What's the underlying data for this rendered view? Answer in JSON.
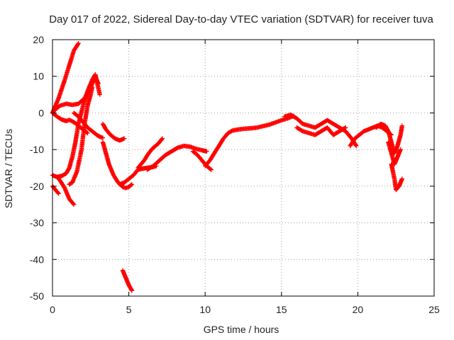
{
  "chart_data": {
    "type": "scatter",
    "title": "Day 017 of 2022, Sidereal Day-to-day VTEC variation (SDTVAR) for receiver tuva",
    "xlabel": "GPS time / hours",
    "ylabel": "SDTVAR / TECUs",
    "xlim": [
      0,
      25
    ],
    "ylim": [
      -50,
      20
    ],
    "xticks": [
      0,
      5,
      10,
      15,
      20,
      25
    ],
    "yticks": [
      20,
      10,
      0,
      -10,
      -20,
      -30,
      -40,
      -50
    ],
    "grid": true,
    "marker": "+",
    "color": "#ff0000",
    "series": [
      {
        "name": "track-1",
        "x": [
          0.0,
          0.4,
          0.8,
          1.1,
          1.4,
          1.7
        ],
        "y": [
          0,
          4,
          9,
          13,
          17,
          19
        ]
      },
      {
        "name": "track-2",
        "x": [
          0.0,
          0.2,
          0.5,
          0.9,
          1.3,
          1.7,
          2.1,
          2.5,
          2.8,
          3.0
        ],
        "y": [
          0,
          1,
          2,
          2.5,
          2.2,
          2.5,
          4,
          7,
          10,
          8
        ]
      },
      {
        "name": "track-3",
        "x": [
          0.0,
          0.3,
          0.6,
          0.9,
          1.1,
          1.3,
          1.5,
          1.7,
          2.0,
          2.3
        ],
        "y": [
          0,
          -1,
          -1.8,
          -2.2,
          -1.9,
          -2.3,
          -2.8,
          -3.5,
          -4.5,
          -5.5
        ]
      },
      {
        "name": "track-4",
        "x": [
          0.0,
          0.3,
          0.6,
          0.9,
          1.1,
          1.3,
          1.5,
          1.7,
          2.0,
          2.3,
          2.6,
          2.8,
          3.1
        ],
        "y": [
          -17,
          -17.5,
          -17.2,
          -16.5,
          -15,
          -12,
          -8,
          -3,
          2,
          6,
          9,
          10.5,
          5
        ]
      },
      {
        "name": "track-5",
        "x": [
          1.1,
          1.3,
          1.6,
          1.9,
          2.1,
          2.3,
          2.5,
          2.6
        ],
        "y": [
          -19.5,
          -19,
          -16,
          -10,
          -3,
          2,
          5,
          7
        ]
      },
      {
        "name": "track-6",
        "x": [
          0.3,
          0.5,
          0.8,
          1.1,
          1.4
        ],
        "y": [
          -17.5,
          -18.5,
          -20.5,
          -23.5,
          -25
        ]
      },
      {
        "name": "track-7",
        "x": [
          0.0,
          0.2,
          0.4
        ],
        "y": [
          -20,
          -21,
          -22
        ]
      },
      {
        "name": "track-8",
        "x": [
          1.4,
          1.7,
          2.0,
          2.3,
          2.6,
          2.9,
          3.1,
          3.3
        ],
        "y": [
          0,
          -1,
          -2.5,
          -4,
          -5,
          -6,
          -6.5,
          -6.8
        ]
      },
      {
        "name": "track-9",
        "x": [
          3.3,
          3.5,
          3.7,
          4.0,
          4.3,
          4.6,
          4.8,
          5.0,
          5.2
        ],
        "y": [
          -8,
          -11,
          -14,
          -17,
          -19,
          -20.2,
          -20.5,
          -20.2,
          -19.5
        ]
      },
      {
        "name": "track-10",
        "x": [
          3.3,
          3.5,
          3.8,
          4.1,
          4.4,
          4.7
        ],
        "y": [
          -3,
          -4.5,
          -6,
          -7,
          -7.5,
          -7
        ]
      },
      {
        "name": "track-11",
        "x": [
          4.4,
          4.7,
          5.0,
          5.3,
          5.6,
          5.9,
          6.2,
          6.5,
          6.8
        ],
        "y": [
          -19.5,
          -19,
          -18,
          -17,
          -15.5,
          -15.2,
          -15,
          -14.8,
          -14.5
        ]
      },
      {
        "name": "track-12",
        "x": [
          5.6,
          6.0,
          6.3,
          6.6,
          6.9,
          7.2
        ],
        "y": [
          -15,
          -13,
          -11,
          -9.5,
          -8.5,
          -7
        ]
      },
      {
        "name": "track-13",
        "x": [
          6.2,
          6.6,
          7.0,
          7.4,
          7.8,
          8.2,
          8.6,
          9.0,
          9.4,
          9.8,
          10.1
        ],
        "y": [
          -15.5,
          -14.5,
          -13,
          -11.5,
          -10.5,
          -9.5,
          -9,
          -9.2,
          -9.8,
          -10.2,
          -10.5
        ]
      },
      {
        "name": "track-14",
        "x": [
          9.2,
          9.5,
          9.8,
          10.1,
          10.4
        ],
        "y": [
          -10.5,
          -11.5,
          -13,
          -14.5,
          -15.5
        ]
      },
      {
        "name": "track-15",
        "x": [
          10.0,
          10.3,
          10.6,
          10.9,
          11.2,
          11.5,
          11.8,
          12.2,
          12.6,
          13.0,
          13.4,
          13.8,
          14.2,
          14.6,
          15.0,
          15.4,
          15.8
        ],
        "y": [
          -14.5,
          -13,
          -11,
          -9,
          -7,
          -5.5,
          -4.8,
          -4.5,
          -4.3,
          -4.2,
          -4.0,
          -3.6,
          -3.2,
          -2.6,
          -2.0,
          -1.5,
          -0.8
        ]
      },
      {
        "name": "track-16",
        "x": [
          15.2,
          15.6,
          16.0,
          16.4,
          16.8,
          17.2,
          17.6,
          18.0,
          18.4,
          18.8,
          19.2,
          19.6,
          19.9
        ],
        "y": [
          -1,
          -0.5,
          -1.5,
          -3,
          -3.5,
          -4,
          -3,
          -2,
          -3,
          -4,
          -5,
          -7,
          -9
        ]
      },
      {
        "name": "track-17",
        "x": [
          16.0,
          16.4,
          16.8,
          17.2,
          17.6,
          18.0,
          18.4,
          18.8,
          19.2
        ],
        "y": [
          -4,
          -5,
          -5.5,
          -6,
          -5,
          -4,
          -6,
          -5,
          -4
        ]
      },
      {
        "name": "track-18",
        "x": [
          19.5,
          19.8,
          20.1,
          20.4,
          20.7,
          21.0,
          21.3,
          21.6,
          21.9,
          22.2
        ],
        "y": [
          -9,
          -7,
          -6,
          -5,
          -4.5,
          -4,
          -3.5,
          -4,
          -5,
          -6
        ]
      },
      {
        "name": "track-19",
        "x": [
          21.2,
          21.5,
          21.8,
          22.0,
          22.2,
          22.4,
          22.6,
          22.8,
          22.9
        ],
        "y": [
          -4,
          -3,
          -3.5,
          -5,
          -8,
          -11,
          -9,
          -6,
          -3.5
        ]
      },
      {
        "name": "track-20",
        "x": [
          22.0,
          22.2,
          22.4,
          22.6,
          22.8
        ],
        "y": [
          -8,
          -11,
          -14,
          -12,
          -10
        ]
      },
      {
        "name": "track-21",
        "x": [
          22.2,
          22.4,
          22.5,
          22.7,
          22.9
        ],
        "y": [
          -14,
          -18,
          -21,
          -20,
          -18
        ]
      },
      {
        "name": "track-22",
        "x": [
          4.6,
          4.8,
          5.0,
          5.2
        ],
        "y": [
          -43,
          -45,
          -47,
          -48.5
        ]
      }
    ]
  }
}
